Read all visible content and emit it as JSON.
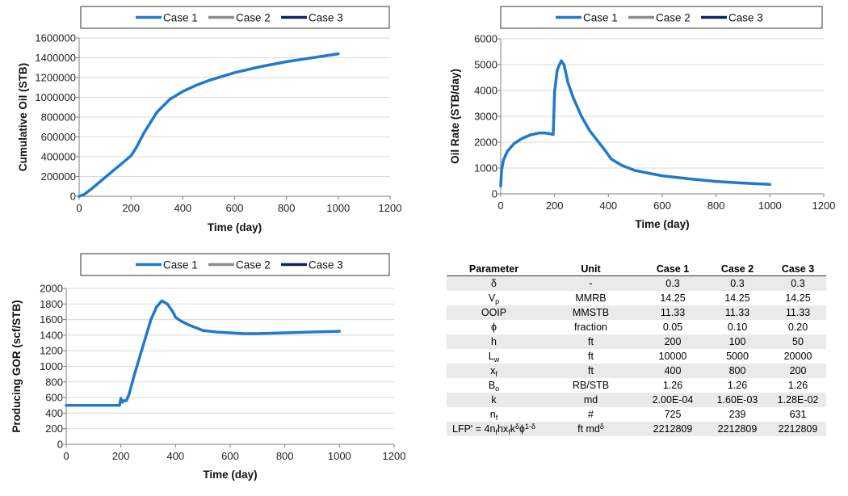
{
  "legend_labels": [
    "Case 1",
    "Case 2",
    "Case 3"
  ],
  "colors": {
    "case1": "#1f7acb",
    "case2": "#8c8c8c",
    "case3": "#0e2461",
    "grid": "#d9d9d9",
    "axis": "#7f7f7f"
  },
  "chart_data": [
    {
      "type": "line",
      "xlabel": "Time (day)",
      "ylabel": "Cumulative Oil (STB)",
      "xlim": [
        0,
        1200
      ],
      "ylim": [
        0,
        1600000
      ],
      "xticks": [
        0,
        200,
        400,
        600,
        800,
        1000,
        1200
      ],
      "yticks": [
        0,
        200000,
        400000,
        600000,
        800000,
        1000000,
        1200000,
        1400000,
        1600000
      ],
      "grid": "horizontal",
      "legend": "top",
      "series": [
        {
          "name": "Case 1",
          "color": "#1f7acb",
          "x": [
            0,
            20,
            50,
            100,
            150,
            200,
            220,
            250,
            300,
            350,
            400,
            450,
            500,
            600,
            700,
            800,
            900,
            1000
          ],
          "y": [
            0,
            20000,
            80000,
            190000,
            300000,
            410000,
            490000,
            640000,
            850000,
            980000,
            1060000,
            1120000,
            1170000,
            1250000,
            1310000,
            1360000,
            1400000,
            1440000
          ]
        }
      ]
    },
    {
      "type": "line",
      "xlabel": "Time (day)",
      "ylabel": "Oil Rate (STB/day)",
      "xlim": [
        0,
        1200
      ],
      "ylim": [
        0,
        6000
      ],
      "xticks": [
        0,
        200,
        400,
        600,
        800,
        1000,
        1200
      ],
      "yticks": [
        0,
        1000,
        2000,
        3000,
        4000,
        5000,
        6000
      ],
      "grid": "horizontal",
      "legend": "top",
      "series": [
        {
          "name": "Case 1",
          "color": "#1f7acb",
          "x": [
            0,
            3,
            10,
            25,
            50,
            80,
            110,
            140,
            160,
            180,
            195,
            200,
            210,
            225,
            235,
            250,
            270,
            300,
            330,
            360,
            390,
            410,
            450,
            500,
            600,
            700,
            800,
            900,
            1000
          ],
          "y": [
            300,
            900,
            1300,
            1650,
            1950,
            2150,
            2280,
            2350,
            2360,
            2330,
            2300,
            3950,
            4800,
            5150,
            5000,
            4300,
            3700,
            3000,
            2450,
            2050,
            1650,
            1350,
            1100,
            900,
            700,
            580,
            480,
            420,
            370
          ]
        }
      ]
    },
    {
      "type": "line",
      "xlabel": "Time (day)",
      "ylabel": "Producing GOR (scf/STB)",
      "xlim": [
        0,
        1200
      ],
      "ylim": [
        0,
        2000
      ],
      "xticks": [
        0,
        200,
        400,
        600,
        800,
        1000,
        1200
      ],
      "yticks": [
        0,
        200,
        400,
        600,
        800,
        1000,
        1200,
        1400,
        1600,
        1800,
        2000
      ],
      "grid": "horizontal",
      "legend": "top",
      "series": [
        {
          "name": "Case 1",
          "color": "#1f7acb",
          "x": [
            0,
            100,
            195,
            200,
            205,
            210,
            220,
            230,
            250,
            280,
            310,
            330,
            350,
            370,
            390,
            400,
            420,
            450,
            500,
            550,
            600,
            650,
            700,
            800,
            900,
            1000
          ],
          "y": [
            500,
            500,
            500,
            590,
            540,
            560,
            560,
            640,
            900,
            1250,
            1600,
            1760,
            1840,
            1800,
            1700,
            1630,
            1580,
            1530,
            1460,
            1440,
            1430,
            1420,
            1420,
            1430,
            1440,
            1450
          ]
        }
      ]
    },
    {
      "type": "table",
      "columns": [
        "Parameter",
        "Unit",
        "Case 1",
        "Case 2",
        "Case 3"
      ],
      "rows": [
        {
          "param": "δ",
          "unit": "-",
          "c1": "0.3",
          "c2": "0.3",
          "c3": "0.3"
        },
        {
          "param": "V",
          "param_sub": "p",
          "unit": "MMRB",
          "c1": "14.25",
          "c2": "14.25",
          "c3": "14.25"
        },
        {
          "param": "OOIP",
          "unit": "MMSTB",
          "c1": "11.33",
          "c2": "11.33",
          "c3": "11.33"
        },
        {
          "param": "ϕ",
          "unit": "fraction",
          "c1": "0.05",
          "c2": "0.10",
          "c3": "0.20"
        },
        {
          "param": "h",
          "unit": "ft",
          "c1": "200",
          "c2": "100",
          "c3": "50"
        },
        {
          "param": "L",
          "param_sub": "w",
          "unit": "ft",
          "c1": "10000",
          "c2": "5000",
          "c3": "20000"
        },
        {
          "param": "x",
          "param_sub": "f",
          "unit": "ft",
          "c1": "400",
          "c2": "800",
          "c3": "200"
        },
        {
          "param": "B",
          "param_sub": "o",
          "unit": "RB/STB",
          "c1": "1.26",
          "c2": "1.26",
          "c3": "1.26"
        },
        {
          "param": "k",
          "unit": "md",
          "c1": "2.00E-04",
          "c2": "1.60E-03",
          "c3": "1.28E-02"
        },
        {
          "param": "n",
          "param_sub": "f",
          "unit": "#",
          "c1": "725",
          "c2": "239",
          "c3": "631"
        },
        {
          "param": "LFP' = 4n",
          "param_rich": true,
          "unit": "ft md",
          "unit_sup": "δ",
          "c1": "2212809",
          "c2": "2212809",
          "c3": "2212809"
        }
      ]
    }
  ]
}
